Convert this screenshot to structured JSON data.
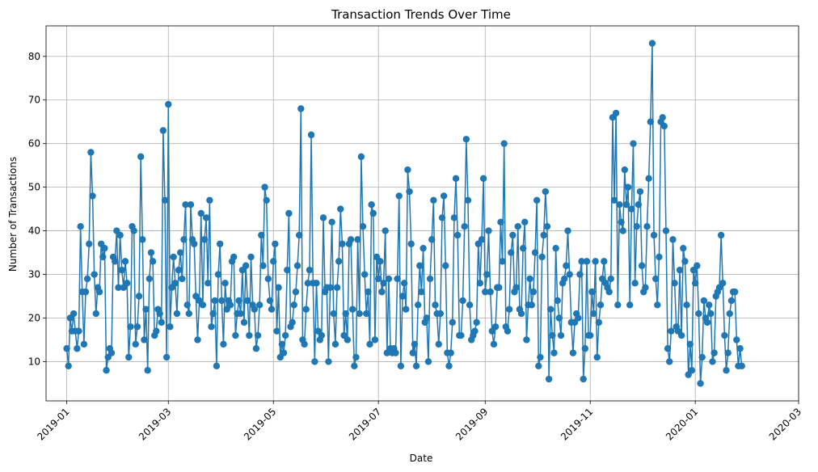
{
  "chart_data": {
    "type": "line",
    "title": "Transaction Trends Over Time",
    "xlabel": "Date",
    "ylabel": "Number of Transactions",
    "grid": true,
    "series_color": "#1f77b4",
    "x_start": "2019-01-01",
    "x_step": "1 day",
    "xlim": [
      "2018-12-20",
      "2020-03-01"
    ],
    "ylim": [
      1,
      87
    ],
    "x_ticks": [
      "2019-01",
      "2019-03",
      "2019-05",
      "2019-07",
      "2019-09",
      "2019-11",
      "2020-01",
      "2020-03"
    ],
    "y_ticks": [
      10,
      20,
      30,
      40,
      50,
      60,
      70,
      80
    ],
    "values": [
      13,
      9,
      20,
      17,
      21,
      17,
      13,
      17,
      41,
      26,
      14,
      26,
      29,
      37,
      58,
      48,
      30,
      21,
      27,
      26,
      37,
      34,
      36,
      8,
      11,
      13,
      12,
      34,
      33,
      40,
      27,
      39,
      31,
      27,
      33,
      28,
      11,
      18,
      41,
      40,
      14,
      18,
      25,
      57,
      38,
      15,
      22,
      8,
      29,
      35,
      33,
      16,
      17,
      22,
      21,
      19,
      63,
      47,
      11,
      69,
      18,
      27,
      34,
      28,
      21,
      31,
      35,
      29,
      38,
      46,
      23,
      21,
      46,
      38,
      37,
      25,
      15,
      24,
      44,
      23,
      38,
      43,
      28,
      47,
      18,
      21,
      24,
      9,
      30,
      37,
      24,
      14,
      28,
      22,
      24,
      23,
      33,
      34,
      16,
      21,
      24,
      21,
      31,
      19,
      32,
      24,
      16,
      34,
      23,
      22,
      13,
      16,
      23,
      39,
      32,
      50,
      47,
      29,
      24,
      22,
      33,
      37,
      17,
      27,
      11,
      14,
      12,
      16,
      31,
      44,
      18,
      19,
      23,
      26,
      32,
      39,
      68,
      15,
      14,
      22,
      28,
      31,
      62,
      28,
      10,
      28,
      17,
      15,
      16,
      43,
      26,
      27,
      10,
      27,
      42,
      21,
      14,
      27,
      33,
      45,
      37,
      16,
      21,
      15,
      37,
      38,
      22,
      9,
      11,
      38,
      21,
      57,
      41,
      30,
      21,
      26,
      14,
      46,
      44,
      15,
      34,
      29,
      33,
      26,
      28,
      40,
      12,
      29,
      13,
      12,
      13,
      12,
      29,
      48,
      9,
      25,
      28,
      22,
      54,
      49,
      37,
      12,
      14,
      9,
      23,
      32,
      26,
      36,
      19,
      20,
      10,
      29,
      38,
      47,
      23,
      21,
      14,
      21,
      43,
      48,
      32,
      12,
      9,
      12,
      19,
      43,
      52,
      39,
      16,
      16,
      24,
      41,
      61,
      47,
      23,
      15,
      16,
      17,
      19,
      37,
      28,
      38,
      52,
      26,
      30,
      40,
      26,
      17,
      14,
      18,
      27,
      27,
      42,
      33,
      60,
      18,
      17,
      22,
      35,
      39,
      26,
      27,
      41,
      22,
      21,
      36,
      42,
      15,
      23,
      29,
      23,
      26,
      35,
      47,
      9,
      11,
      34,
      39,
      49,
      41,
      6,
      22,
      16,
      12,
      36,
      24,
      20,
      16,
      28,
      29,
      32,
      40,
      30,
      19,
      12,
      19,
      21,
      20,
      30,
      33,
      6,
      13,
      33,
      16,
      16,
      26,
      21,
      33,
      11,
      19,
      23,
      29,
      33,
      28,
      27,
      26,
      29,
      66,
      47,
      67,
      23,
      46,
      42,
      40,
      54,
      46,
      50,
      23,
      45,
      60,
      28,
      41,
      46,
      49,
      32,
      26,
      27,
      41,
      52,
      65,
      83,
      39,
      29,
      23,
      34,
      65,
      66,
      64,
      40,
      13,
      10,
      17,
      38,
      28,
      18,
      17,
      31,
      16,
      36,
      33,
      23,
      7,
      14,
      8,
      31,
      28,
      32,
      21,
      5,
      11,
      24,
      20,
      19,
      23,
      21,
      10,
      12,
      25,
      26,
      27,
      39,
      28,
      16,
      8,
      12,
      21,
      24,
      26,
      26,
      15,
      9,
      13,
      9
    ]
  }
}
